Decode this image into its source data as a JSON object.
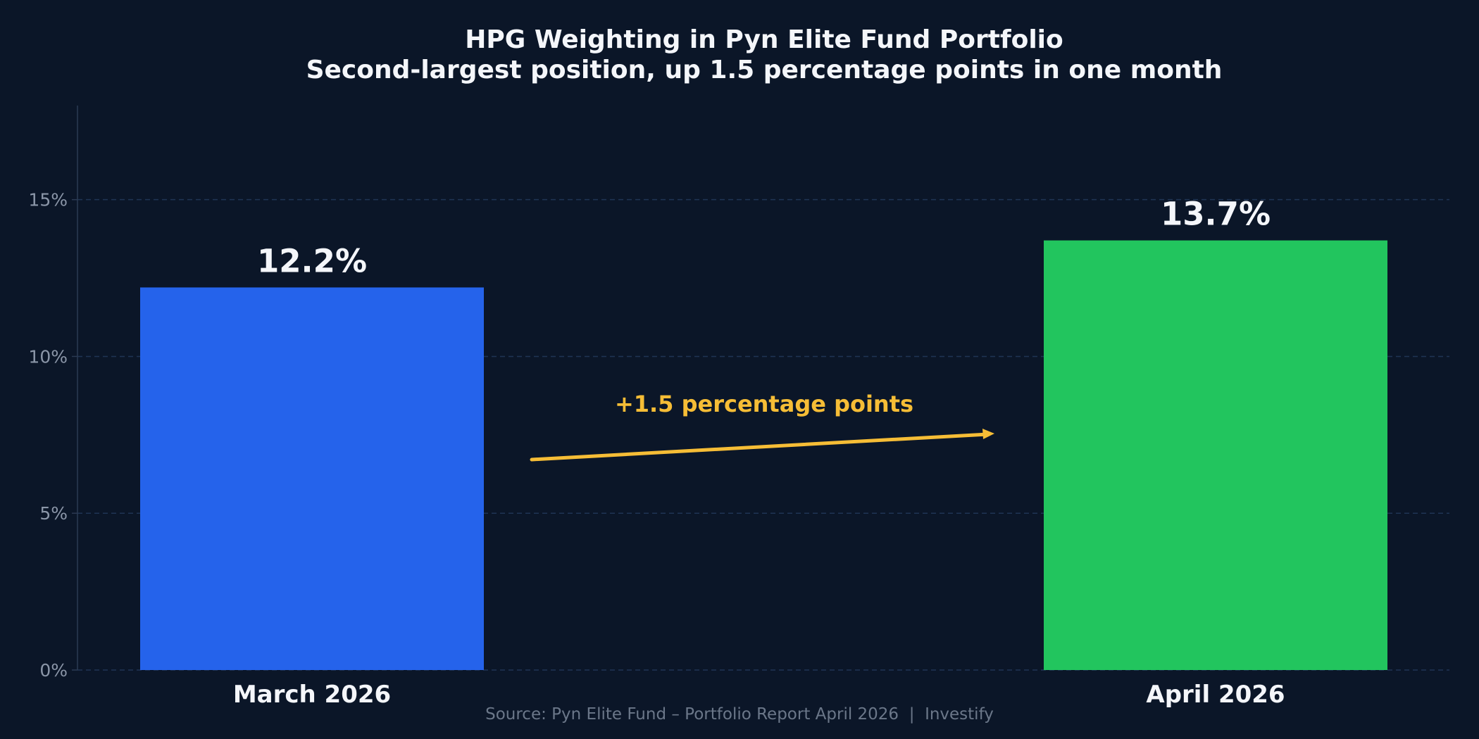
{
  "colors": {
    "background": "#0b1628",
    "text": "#f4f6fa",
    "muted_text": "#8b96a8",
    "grid": "#1f3454",
    "axis": "#2b3a52",
    "annotation": "#f6bd36"
  },
  "chart_data": {
    "type": "bar",
    "title": "HPG Weighting in Pyn Elite Fund Portfolio",
    "subtitle": "Second-largest position, up 1.5 percentage points in one month",
    "categories": [
      "March 2026",
      "April 2026"
    ],
    "values": [
      12.2,
      13.7
    ],
    "value_labels": [
      "12.2%",
      "13.7%"
    ],
    "bar_colors": [
      "#2563eb",
      "#22c55e"
    ],
    "xlabel": "",
    "ylabel": "",
    "ylim": [
      0,
      18
    ],
    "yticks": [
      0,
      5,
      10,
      15
    ],
    "ytick_labels": [
      "0%",
      "5%",
      "10%",
      "15%"
    ],
    "grid": true,
    "legend": "none",
    "annotation": {
      "text": "+1.5 percentage points",
      "from_category": "March 2026",
      "to_category": "April 2026"
    },
    "source": "Source: Pyn Elite Fund – Portfolio Report April 2026  |  Investify"
  }
}
